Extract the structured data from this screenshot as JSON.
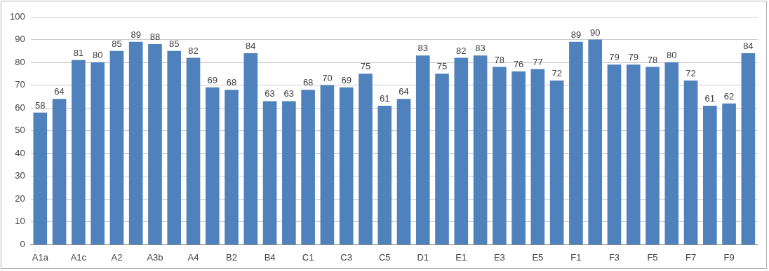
{
  "chart_data": {
    "type": "bar",
    "categories": [
      "A1a",
      null,
      "A1c",
      null,
      "A2",
      null,
      "A3b",
      null,
      "A4",
      null,
      "B2",
      null,
      "B4",
      null,
      "C1",
      null,
      "C3",
      null,
      "C5",
      null,
      "D1",
      null,
      "E1",
      null,
      "E3",
      null,
      "E5",
      null,
      "F1",
      null,
      "F3",
      null,
      "F5",
      null,
      "F7",
      null,
      "F9",
      null
    ],
    "values": [
      58,
      64,
      81,
      80,
      85,
      89,
      88,
      85,
      82,
      69,
      68,
      84,
      63,
      63,
      68,
      70,
      69,
      75,
      61,
      64,
      83,
      75,
      82,
      83,
      78,
      76,
      77,
      72,
      89,
      90,
      79,
      79,
      78,
      80,
      72,
      61,
      62,
      84
    ],
    "color": "#4f81bd",
    "ylim": [
      0,
      100
    ],
    "yticks": [
      0,
      10,
      20,
      30,
      40,
      50,
      60,
      70,
      80,
      90,
      100
    ],
    "grid": true,
    "data_labels": true
  }
}
